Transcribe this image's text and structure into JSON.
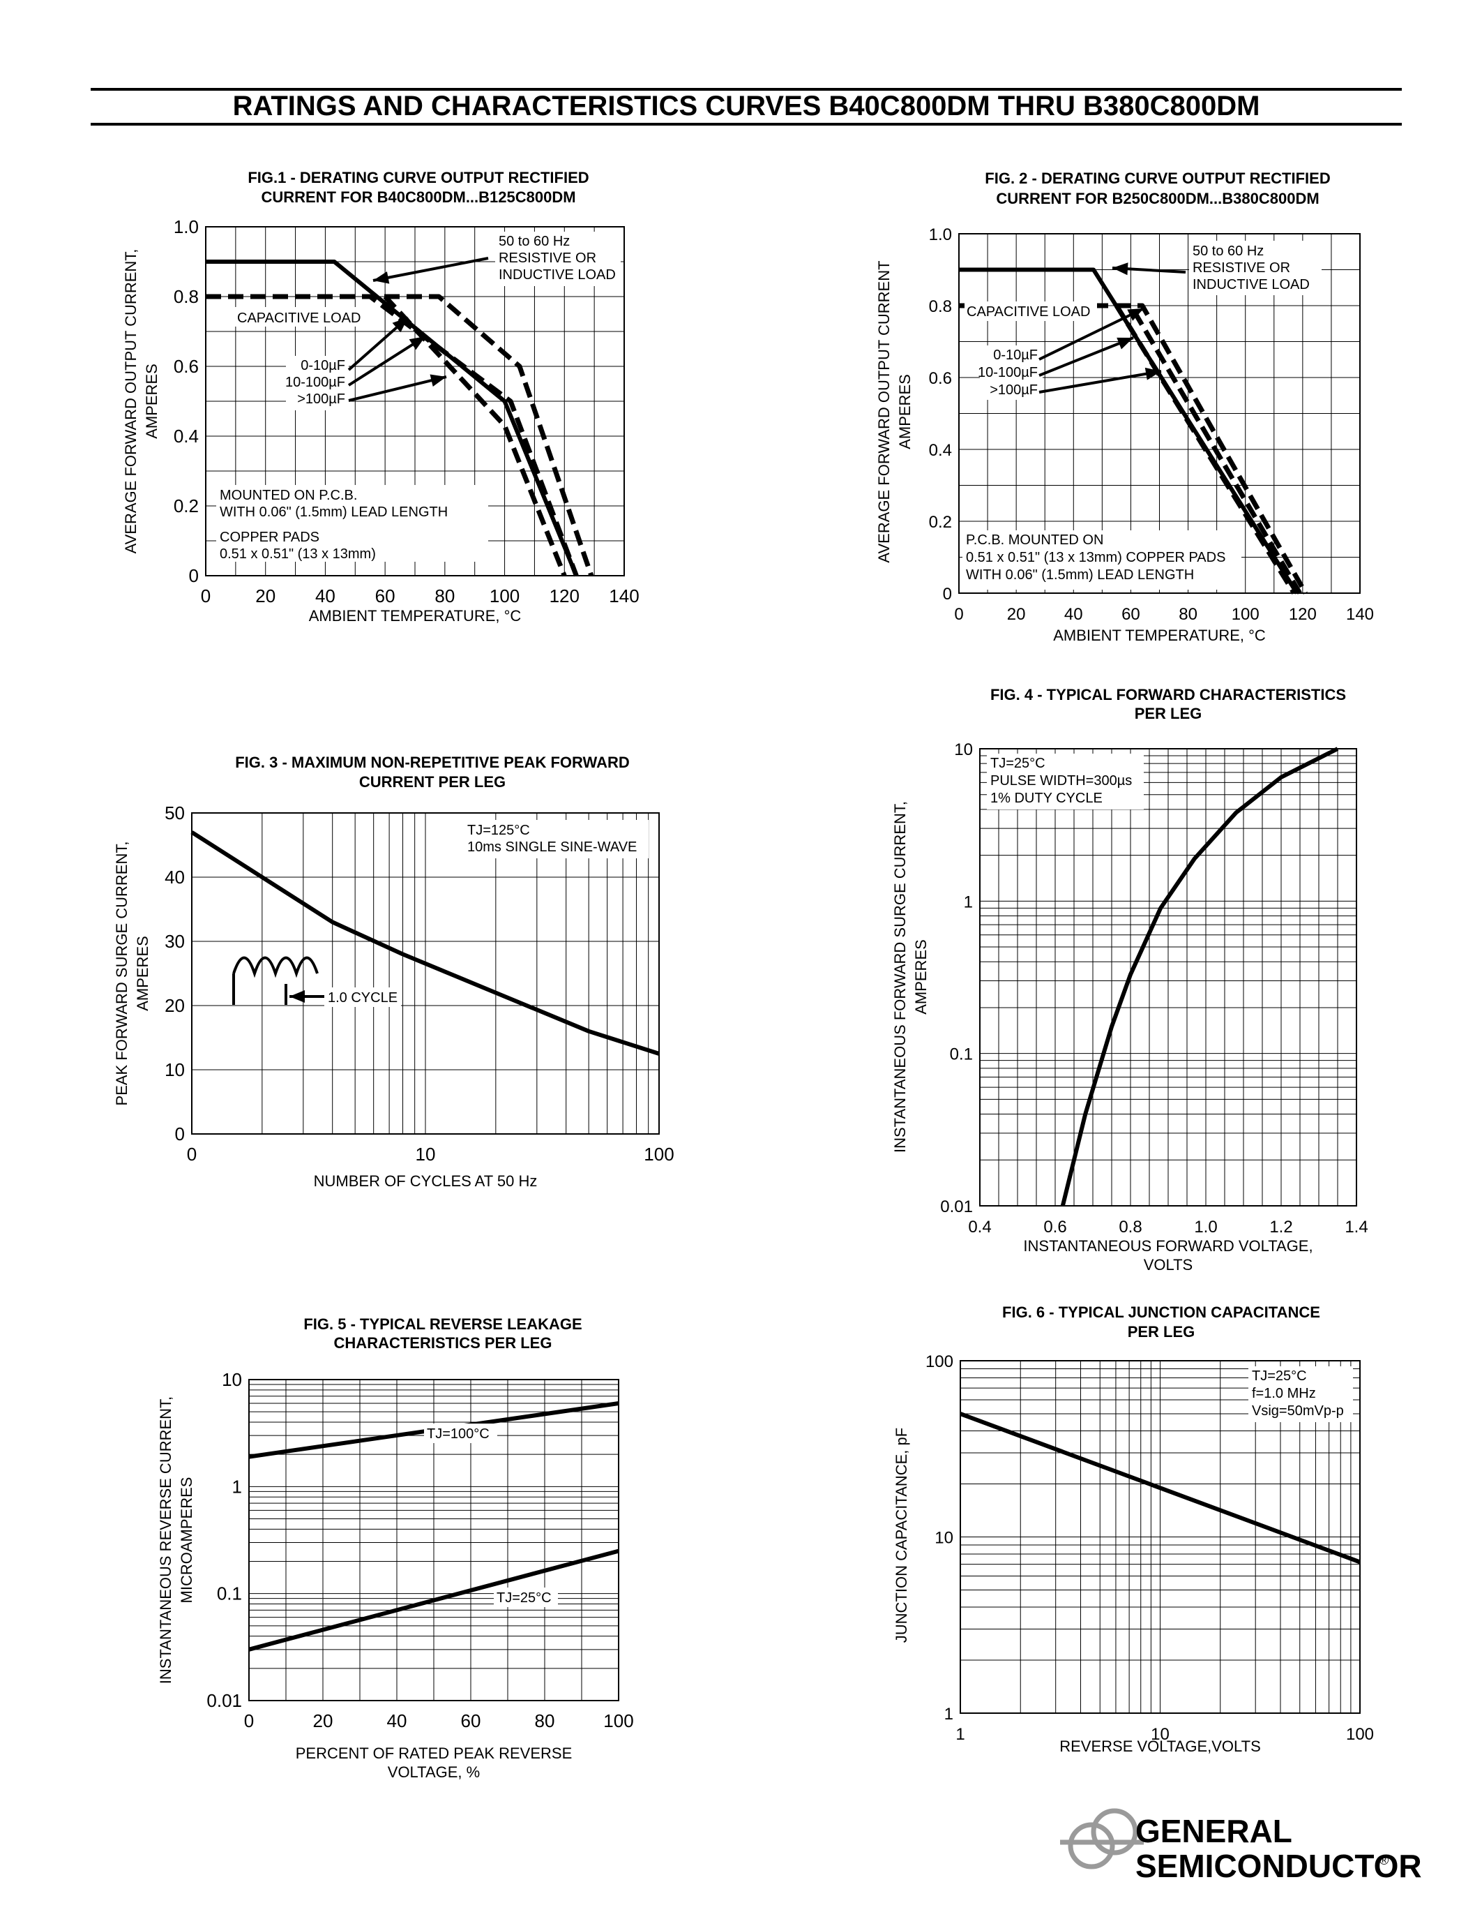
{
  "page": {
    "title": "RATINGS AND CHARACTERISTICS CURVES B40C800DM THRU B380C800DM"
  },
  "logo": {
    "line1": "GENERAL",
    "line2": "SEMICONDUCTOR",
    "mark": "®"
  },
  "chart_data": [
    {
      "id": "fig1",
      "type": "line",
      "title_lines": [
        "FIG.1 - DERATING CURVE OUTPUT RECTIFIED",
        "CURRENT FOR B40C800DM...B125C800DM"
      ],
      "xlabel": "AMBIENT TEMPERATURE, °C",
      "ylabel_lines": [
        "AVERAGE FORWARD OUTPUT CURRENT,",
        "AMPERES"
      ],
      "xlim": [
        0,
        140
      ],
      "ylim": [
        0,
        1.0
      ],
      "xticks": [
        "0",
        "20",
        "40",
        "60",
        "80",
        "100",
        "120",
        "140"
      ],
      "yticks": [
        "0",
        "0.2",
        "0.4",
        "0.6",
        "0.8",
        "1.0"
      ],
      "series": [
        {
          "name": "50 to 60 Hz RESISTIVE OR INDUCTIVE LOAD",
          "style": "solid",
          "points": [
            [
              0,
              0.9
            ],
            [
              43,
              0.9
            ],
            [
              100,
              0.5
            ],
            [
              124,
              0.0
            ]
          ]
        },
        {
          "name": "0-10µF",
          "style": "dashed",
          "points": [
            [
              0,
              0.8
            ],
            [
              78,
              0.8
            ],
            [
              105,
              0.6
            ],
            [
              129,
              0.0
            ]
          ]
        },
        {
          "name": "10-100µF",
          "style": "dashed",
          "points": [
            [
              0,
              0.8
            ],
            [
              55,
              0.8
            ],
            [
              102,
              0.5
            ],
            [
              124,
              0.0
            ]
          ]
        },
        {
          "name": ">100µF",
          "style": "dashed",
          "points": [
            [
              0,
              0.8
            ],
            [
              60,
              0.8
            ],
            [
              100,
              0.43
            ],
            [
              120,
              0.0
            ]
          ]
        }
      ],
      "annotations": [
        "50 to 60 Hz",
        "RESISTIVE OR",
        "INDUCTIVE LOAD",
        "CAPACITIVE LOAD",
        "0-10µF",
        "10-100µF",
        ">100µF",
        "MOUNTED ON P.C.B.",
        "WITH 0.06\" (1.5mm) LEAD LENGTH",
        "COPPER PADS",
        "0.51 x 0.51\" (13 x 13mm)"
      ]
    },
    {
      "id": "fig2",
      "type": "line",
      "title_lines": [
        "FIG. 2 - DERATING CURVE OUTPUT RECTIFIED",
        "CURRENT FOR B250C800DM...B380C800DM"
      ],
      "xlabel": "AMBIENT TEMPERATURE, °C",
      "ylabel_lines": [
        "AVERAGE FORWARD OUTPUT CURRENT",
        "AMPERES"
      ],
      "xlim": [
        0,
        140
      ],
      "ylim": [
        0,
        1.0
      ],
      "xticks": [
        "0",
        "20",
        "40",
        "60",
        "80",
        "100",
        "120",
        "140"
      ],
      "yticks": [
        "0",
        "0.2",
        "0.4",
        "0.6",
        "0.8",
        "1.0"
      ],
      "series": [
        {
          "name": "50 to 60 Hz RESISTIVE OR INDUCTIVE LOAD",
          "style": "solid",
          "points": [
            [
              0,
              0.9
            ],
            [
              47,
              0.9
            ],
            [
              118,
              0.0
            ]
          ]
        },
        {
          "name": "0-10µF",
          "style": "dashed",
          "points": [
            [
              0,
              0.8
            ],
            [
              64,
              0.8
            ],
            [
              121,
              0.0
            ]
          ]
        },
        {
          "name": "10-100µF",
          "style": "dashed",
          "points": [
            [
              0,
              0.8
            ],
            [
              60,
              0.8
            ],
            [
              119,
              0.0
            ]
          ]
        },
        {
          "name": ">100µF",
          "style": "dashed",
          "points": [
            [
              0,
              0.8
            ],
            [
              55,
              0.8
            ],
            [
              117,
              0.0
            ]
          ]
        }
      ],
      "annotations": [
        "50 to 60 Hz",
        "RESISTIVE OR",
        "INDUCTIVE LOAD",
        "CAPACITIVE LOAD",
        "0-10µF",
        "10-100µF",
        ">100µF",
        "P.C.B. MOUNTED ON",
        "0.51 x 0.51\" (13 x 13mm) COPPER PADS",
        "WITH 0.06\" (1.5mm) LEAD LENGTH"
      ]
    },
    {
      "id": "fig3",
      "type": "line",
      "title_lines": [
        "FIG. 3 - MAXIMUM NON-REPETITIVE PEAK FORWARD",
        "CURRENT PER LEG"
      ],
      "xlabel": "NUMBER OF CYCLES AT 50 Hz",
      "ylabel_lines": [
        "PEAK FORWARD SURGE CURRENT,",
        "AMPERES"
      ],
      "xscale": "log",
      "xlim": [
        1,
        100
      ],
      "ylim": [
        0,
        50
      ],
      "xticks": [
        "0",
        "10",
        "100"
      ],
      "yticks": [
        "0",
        "10",
        "20",
        "30",
        "40",
        "50"
      ],
      "series": [
        {
          "points": [
            [
              1,
              47
            ],
            [
              2,
              40
            ],
            [
              4,
              33
            ],
            [
              8,
              28
            ],
            [
              20,
              22
            ],
            [
              50,
              16
            ],
            [
              100,
              12.5
            ]
          ]
        }
      ],
      "annotations": [
        "TJ=125°C",
        "10ms SINGLE SINE-WAVE",
        "1.0 CYCLE"
      ]
    },
    {
      "id": "fig4",
      "type": "line",
      "title_lines": [
        "FIG. 4 - TYPICAL FORWARD CHARACTERISTICS",
        "PER LEG"
      ],
      "xlabel_lines": [
        "INSTANTANEOUS FORWARD VOLTAGE,",
        "VOLTS"
      ],
      "ylabel_lines": [
        "INSTANTANEOUS FORWARD SURGE  CURRENT,",
        "AMPERES"
      ],
      "yscale": "log",
      "xlim": [
        0.4,
        1.4
      ],
      "ylim": [
        0.01,
        10
      ],
      "xticks": [
        "0.4",
        "0.6",
        "0.8",
        "1.0",
        "1.2",
        "1.4"
      ],
      "yticks": [
        "0.01",
        "0.1",
        "1",
        "10"
      ],
      "series": [
        {
          "points": [
            [
              0.62,
              0.01
            ],
            [
              0.68,
              0.04
            ],
            [
              0.75,
              0.15
            ],
            [
              0.8,
              0.33
            ],
            [
              0.88,
              0.9
            ],
            [
              0.97,
              1.9
            ],
            [
              1.08,
              3.8
            ],
            [
              1.2,
              6.5
            ],
            [
              1.35,
              10.0
            ]
          ]
        }
      ],
      "annotations": [
        "TJ=25°C",
        "PULSE WIDTH=300µs",
        "1% DUTY CYCLE"
      ]
    },
    {
      "id": "fig5",
      "type": "line",
      "title_lines": [
        "FIG. 5 - TYPICAL REVERSE LEAKAGE",
        "CHARACTERISTICS PER LEG"
      ],
      "xlabel_lines": [
        "PERCENT OF RATED PEAK REVERSE",
        "VOLTAGE, %"
      ],
      "ylabel_lines": [
        "INSTANTANEOUS REVERSE  CURRENT,",
        "MICROAMPERES"
      ],
      "yscale": "log",
      "xlim": [
        0,
        100
      ],
      "ylim": [
        0.01,
        10
      ],
      "xticks": [
        "0",
        "20",
        "40",
        "60",
        "80",
        "100"
      ],
      "yticks": [
        "0.01",
        "0.1",
        "1",
        "10"
      ],
      "series": [
        {
          "name": "TJ=100°C",
          "points": [
            [
              0,
              1.9
            ],
            [
              100,
              6.0
            ]
          ]
        },
        {
          "name": "TJ=25°C",
          "points": [
            [
              0,
              0.03
            ],
            [
              100,
              0.25
            ]
          ]
        }
      ],
      "annotations": [
        "TJ=100°C",
        "TJ=25°C"
      ]
    },
    {
      "id": "fig6",
      "type": "line",
      "title_lines": [
        "FIG. 6 - TYPICAL JUNCTION CAPACITANCE",
        "PER LEG"
      ],
      "xlabel": "REVERSE VOLTAGE,VOLTS",
      "ylabel_lines": [
        "JUNCTION CAPACITANCE, pF"
      ],
      "xscale": "log",
      "yscale": "log",
      "xlim": [
        1,
        100
      ],
      "ylim": [
        1,
        100
      ],
      "xticks": [
        "1",
        "10",
        "100"
      ],
      "yticks": [
        "1",
        "10",
        "100"
      ],
      "series": [
        {
          "points": [
            [
              1,
              50
            ],
            [
              100,
              7.2
            ]
          ]
        }
      ],
      "annotations": [
        "TJ=25°C",
        "f=1.0 MHz",
        "Vsig=50mVp-p"
      ]
    }
  ]
}
